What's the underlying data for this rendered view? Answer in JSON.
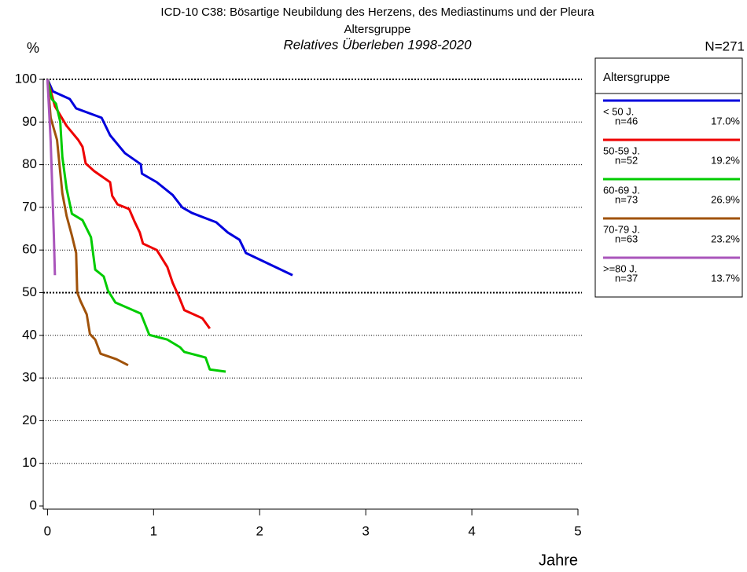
{
  "chart_data": {
    "type": "line",
    "title": "ICD-10 C38: Bösartige Neubildung des Herzens, des Mediastinums und der Pleura",
    "subtitle": "Altersgruppe",
    "subtitle2": "Relatives Überleben 1998-2020",
    "y_label": "%",
    "x_label": "Jahre",
    "total": "N=271",
    "legend_title": "Altersgruppe",
    "xlim": [
      -0.04,
      5
    ],
    "xticks": [
      0,
      1,
      2,
      3,
      4,
      5
    ],
    "ylim": [
      0,
      100
    ],
    "yticks": [
      0,
      10,
      20,
      30,
      40,
      50,
      60,
      70,
      80,
      90,
      100
    ],
    "grid": true,
    "bold_gridlines": [
      50,
      100
    ],
    "series": [
      {
        "name": "< 50 J.",
        "color": "#0000dd",
        "n": {
          "value": 46,
          "label": "n=46"
        },
        "share": {
          "value": 17.0,
          "label": "17.0%"
        },
        "x": [
          0,
          0.05,
          0.21,
          0.27,
          0.51,
          0.59,
          0.73,
          0.88,
          0.89,
          1.03,
          1.18,
          1.27,
          1.36,
          1.59,
          1.7,
          1.81,
          1.87,
          2.31
        ],
        "values": [
          100,
          97.2,
          95.4,
          93.2,
          91,
          86.9,
          82.7,
          80.1,
          77.9,
          75.9,
          72.9,
          70,
          68.7,
          66.5,
          64.1,
          62.4,
          59.3,
          54.1
        ]
      },
      {
        "name": "50-59 J.",
        "color": "#ee0000",
        "n": {
          "value": 52,
          "label": "n=52"
        },
        "share": {
          "value": 19.2,
          "label": "19.2%"
        },
        "x": [
          0,
          0.07,
          0.18,
          0.29,
          0.33,
          0.36,
          0.44,
          0.59,
          0.61,
          0.66,
          0.77,
          0.82,
          0.87,
          0.9,
          1.03,
          1.13,
          1.18,
          1.24,
          1.29,
          1.46,
          1.53
        ],
        "values": [
          100,
          93.7,
          89.1,
          85.8,
          84.2,
          80.3,
          78.5,
          75.9,
          72.7,
          70.7,
          69.6,
          66.7,
          64.1,
          61.5,
          60,
          56,
          52.3,
          49,
          45.9,
          44,
          41.6
        ]
      },
      {
        "name": "60-69 J.",
        "color": "#00cc00",
        "n": {
          "value": 73,
          "label": "n=73"
        },
        "share": {
          "value": 26.9,
          "label": "26.9%"
        },
        "x": [
          0,
          0.04,
          0.08,
          0.12,
          0.14,
          0.18,
          0.23,
          0.33,
          0.41,
          0.45,
          0.53,
          0.57,
          0.64,
          0.88,
          0.96,
          1.13,
          1.25,
          1.29,
          1.49,
          1.53,
          1.68
        ],
        "values": [
          100,
          95.4,
          94.3,
          90.1,
          81.8,
          74.4,
          68.5,
          67,
          63,
          55.4,
          53.8,
          50.5,
          47.7,
          45.1,
          40.1,
          39,
          37.2,
          36.1,
          34.8,
          32,
          31.5
        ]
      },
      {
        "name": "70-79 J.",
        "color": "#a0520a",
        "n": {
          "value": 63,
          "label": "n=63"
        },
        "share": {
          "value": 23.2,
          "label": "23.2%"
        },
        "x": [
          0,
          0.03,
          0.09,
          0.14,
          0.18,
          0.23,
          0.27,
          0.28,
          0.31,
          0.37,
          0.4,
          0.45,
          0.5,
          0.65,
          0.76
        ],
        "values": [
          100,
          91,
          85.8,
          73.3,
          68,
          63.4,
          59.3,
          50.1,
          48.1,
          44.9,
          40.3,
          39,
          35.7,
          34.4,
          33
        ]
      },
      {
        "name": ">=80 J.",
        "color": "#aa55bb",
        "n": {
          "value": 37,
          "label": "n=37"
        },
        "share": {
          "value": 13.7,
          "label": "13.7%"
        },
        "x": [
          0,
          0.03,
          0.06,
          0.07
        ],
        "values": [
          100,
          85.5,
          63.4,
          54.1
        ]
      }
    ]
  }
}
